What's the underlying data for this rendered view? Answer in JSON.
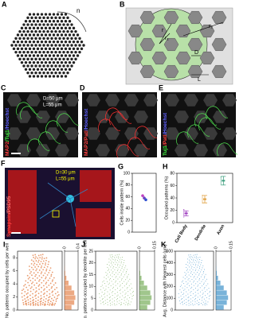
{
  "panels": {
    "A": {
      "letter": "A",
      "label": "n"
    },
    "B": {
      "letter": "B",
      "labels": [
        "r",
        "r₁",
        "r₂",
        "D",
        "L"
      ]
    },
    "C": {
      "letter": "C",
      "d": "D=50 μm",
      "l": "L=55 μm",
      "stain": [
        "MAP2",
        "/Tuj1",
        "/Hoechst"
      ]
    },
    "D": {
      "letter": "D",
      "stain": [
        "MAP2",
        "/Patl",
        "/Hoechst"
      ]
    },
    "E": {
      "letter": "E",
      "stain": [
        "Tuj1",
        "/Patl",
        "/Hoechst"
      ]
    },
    "F": {
      "letter": "F",
      "d": "D=30 μm",
      "l": "L=55 μm",
      "stain": [
        "Synapsin",
        "/PSD95"
      ]
    },
    "G": {
      "letter": "G"
    },
    "H": {
      "letter": "H"
    },
    "I": {
      "letter": "I"
    },
    "J": {
      "letter": "J"
    },
    "K": {
      "letter": "K"
    }
  },
  "chart_data": [
    {
      "type": "scatter",
      "ylabel": "Cells inside pattern (%)",
      "ylim": [
        0,
        100
      ],
      "yticks": [
        0,
        20,
        40,
        60,
        80,
        100
      ],
      "values": [
        62,
        58,
        55
      ],
      "point_colors": [
        "#c040c0",
        "#7040c0",
        "#3050d0"
      ]
    },
    {
      "type": "errorbar",
      "ylabel": "Occupied patterns (%)",
      "ylim": [
        0,
        80
      ],
      "yticks": [
        0,
        20,
        40,
        60,
        80
      ],
      "categories": [
        "Cell Body",
        "Dendrite",
        "Axon"
      ],
      "values": [
        15,
        38,
        68
      ],
      "errors": [
        4,
        6,
        7
      ],
      "point_colors": [
        "#a040c0",
        "#e0a040",
        "#40a080"
      ]
    },
    {
      "type": "cloud",
      "ylabel": "No. patterns occupied by cells per well",
      "ylim": [
        0,
        9
      ],
      "yticks": [
        0,
        2,
        4,
        6,
        8
      ],
      "hist_xlim": [
        0,
        0.4
      ],
      "hist_xticks": [
        0,
        0.4
      ],
      "color": "#e07030"
    },
    {
      "type": "cloud",
      "ylabel": "No. patterns occupied by dendrite per well",
      "ylim": [
        0,
        25
      ],
      "yticks": [
        0,
        5,
        10,
        15,
        20,
        25
      ],
      "hist_xlim": [
        0,
        0.15
      ],
      "hist_xticks": [
        0,
        0.15
      ],
      "color": "#60a040"
    },
    {
      "type": "cloud",
      "ylabel": "Avg. Distance with Nearest cells (μm)",
      "ylim": [
        0,
        500
      ],
      "yticks": [
        0,
        100,
        200,
        300,
        400,
        500
      ],
      "hist_xlim": [
        0,
        0.15
      ],
      "hist_xticks": [
        0,
        0.15
      ],
      "color": "#2080c0"
    }
  ]
}
